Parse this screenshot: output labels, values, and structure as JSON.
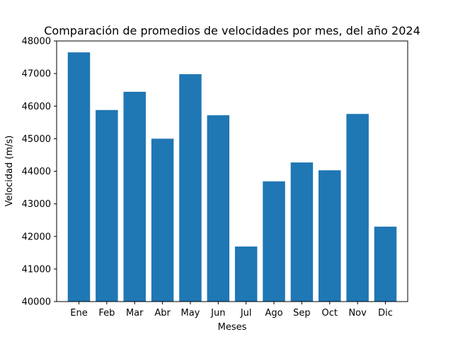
{
  "chart_data": {
    "type": "bar",
    "title": "Comparación de promedios de velocidades por mes, del año 2024",
    "xlabel": "Meses",
    "ylabel": "Velocidad (m/s)",
    "categories": [
      "Ene",
      "Feb",
      "Mar",
      "Abr",
      "May",
      "Jun",
      "Jul",
      "Ago",
      "Sep",
      "Oct",
      "Nov",
      "Dic"
    ],
    "values": [
      47650,
      45880,
      46440,
      45000,
      46980,
      45720,
      41690,
      43690,
      44270,
      44030,
      45760,
      42300
    ],
    "ylim": [
      40000,
      48000
    ],
    "yticks": [
      40000,
      41000,
      42000,
      43000,
      44000,
      45000,
      46000,
      47000,
      48000
    ],
    "bar_color": "#1f77b4",
    "grid": false,
    "legend": "none"
  }
}
